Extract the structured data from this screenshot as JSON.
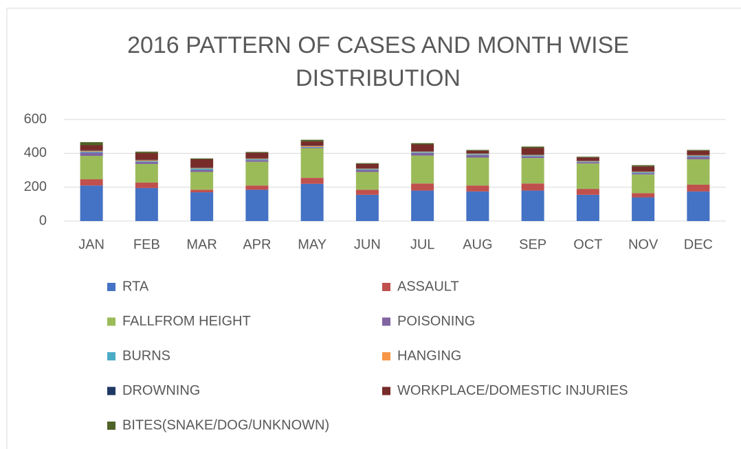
{
  "chart_data": {
    "type": "stacked_bar",
    "title": "2016 PATTERN OF CASES AND MONTH WISE DISTRIBUTION",
    "categories": [
      "JAN",
      "FEB",
      "MAR",
      "APR",
      "MAY",
      "JUN",
      "JUL",
      "AUG",
      "SEP",
      "OCT",
      "NOV",
      "DEC"
    ],
    "series": [
      {
        "name": "RTA",
        "color": "#4472c4",
        "values": [
          210,
          195,
          170,
          185,
          220,
          155,
          180,
          175,
          180,
          155,
          140,
          175
        ]
      },
      {
        "name": "ASSAULT",
        "color": "#c0504d",
        "values": [
          37,
          32,
          15,
          25,
          35,
          30,
          42,
          35,
          42,
          35,
          25,
          40
        ]
      },
      {
        "name": "FALLFROM HEIGHT",
        "color": "#9bbb59",
        "values": [
          138,
          110,
          105,
          140,
          175,
          105,
          165,
          165,
          150,
          150,
          110,
          150
        ]
      },
      {
        "name": "POISONING",
        "color": "#8064a2",
        "values": [
          20,
          12,
          12,
          10,
          5,
          12,
          15,
          15,
          10,
          8,
          8,
          15
        ]
      },
      {
        "name": "BURNS",
        "color": "#4bacc6",
        "values": [
          5,
          5,
          8,
          5,
          3,
          5,
          5,
          5,
          5,
          3,
          5,
          5
        ]
      },
      {
        "name": "HANGING",
        "color": "#f79646",
        "values": [
          5,
          5,
          3,
          3,
          5,
          3,
          3,
          3,
          3,
          3,
          3,
          3
        ]
      },
      {
        "name": "DROWNING",
        "color": "#1f3864",
        "values": [
          3,
          3,
          2,
          2,
          2,
          2,
          2,
          2,
          2,
          2,
          2,
          2
        ]
      },
      {
        "name": "WORKPLACE/DOMESTIC INJURIES",
        "color": "#772c2a",
        "values": [
          30,
          40,
          50,
          33,
          25,
          25,
          40,
          15,
          40,
          20,
          30,
          25
        ]
      },
      {
        "name": "BITES(SNAKE/DOG/UNKNOWN)",
        "color": "#4f6228",
        "values": [
          18,
          8,
          5,
          5,
          10,
          5,
          8,
          5,
          8,
          4,
          7,
          5
        ]
      }
    ],
    "ylim": [
      0,
      600
    ],
    "yticks": [
      0,
      200,
      400,
      600
    ],
    "grid": true
  }
}
